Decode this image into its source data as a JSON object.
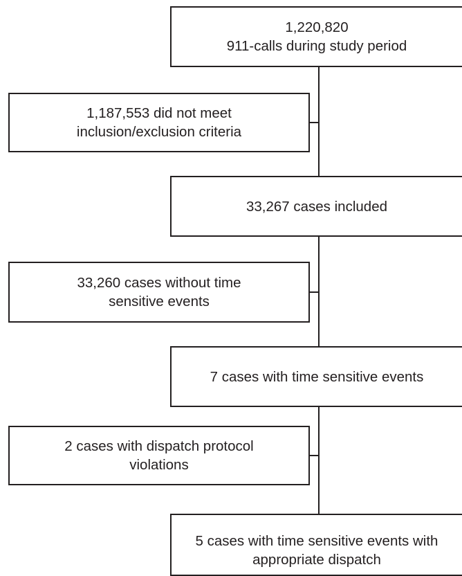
{
  "flowchart": {
    "total_calls": {
      "line1": "1,220,820",
      "line2": "911-calls during study period"
    },
    "excluded_criteria": {
      "line1": "1,187,553 did not meet",
      "line2": "inclusion/exclusion criteria"
    },
    "cases_included": {
      "line1": "33,267 cases included"
    },
    "without_time_sensitive": {
      "line1": "33,260 cases without time",
      "line2": "sensitive events"
    },
    "with_time_sensitive": {
      "line1": "7 cases with time sensitive events"
    },
    "protocol_violations": {
      "line1": "2 cases with dispatch protocol",
      "line2": "violations"
    },
    "appropriate_dispatch": {
      "line1": "5 cases with time sensitive events with",
      "line2": "appropriate dispatch"
    }
  }
}
